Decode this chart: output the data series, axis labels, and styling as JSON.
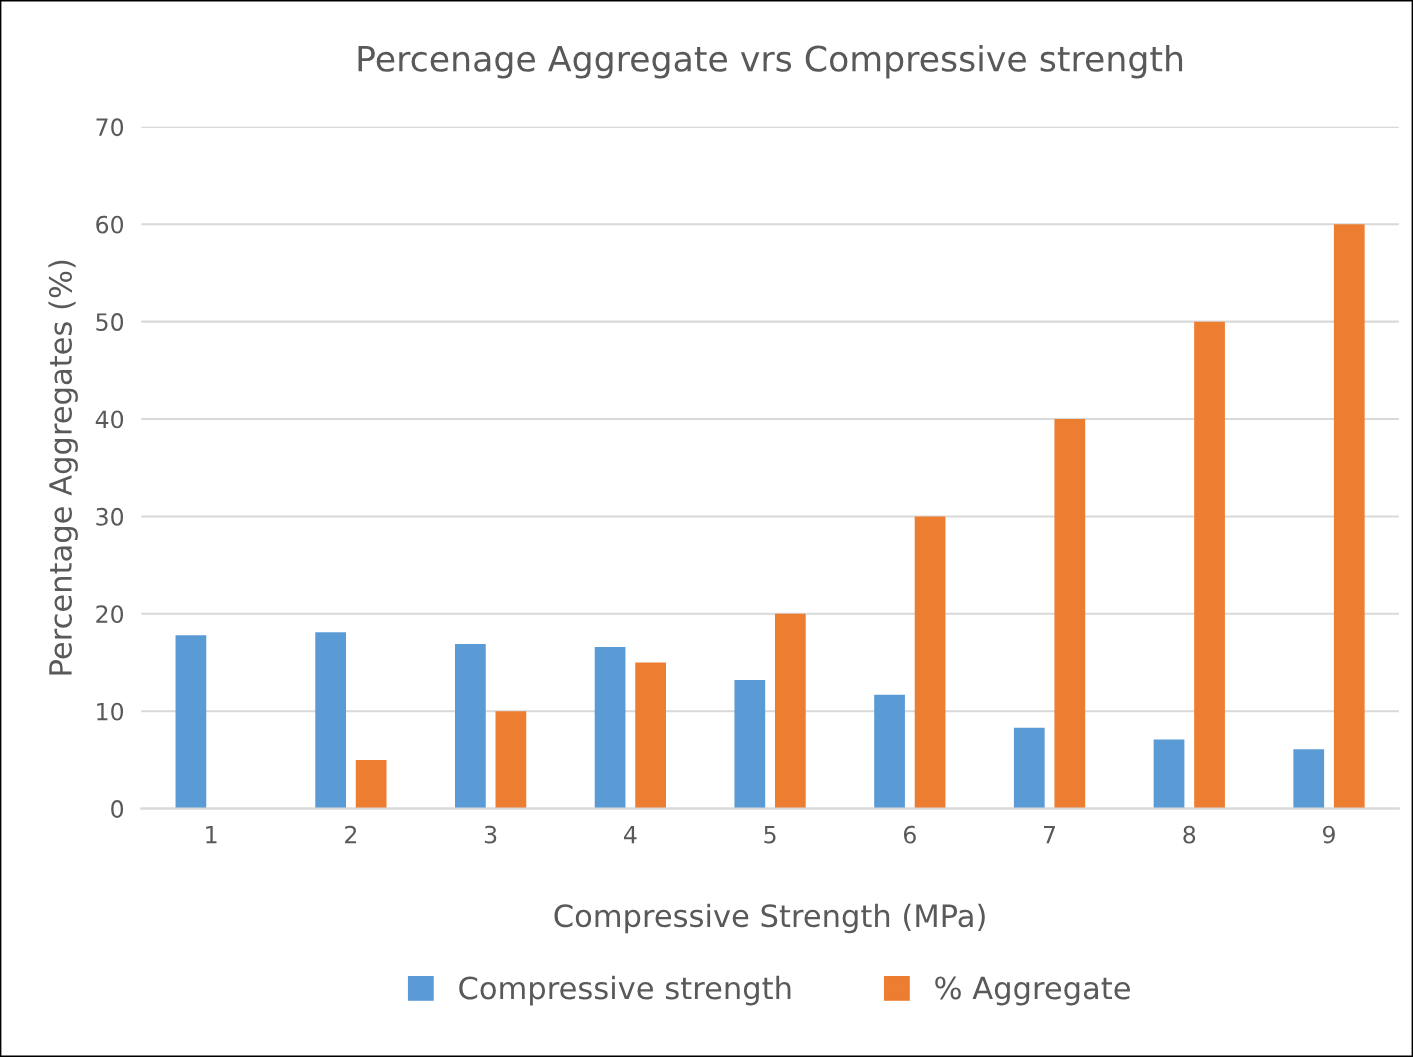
{
  "chart_data": {
    "type": "bar",
    "title": "Percenage Aggregate vrs Compressive strength",
    "xlabel": "Compressive Strength (MPa)",
    "ylabel": "Percentage Aggregates (%)",
    "categories": [
      "1",
      "2",
      "3",
      "4",
      "5",
      "6",
      "7",
      "8",
      "9"
    ],
    "series": [
      {
        "name": "Compressive strength",
        "color": "#5b9bd5",
        "values": [
          17.8,
          18.1,
          16.9,
          16.6,
          13.2,
          11.7,
          8.3,
          7.1,
          6.1
        ]
      },
      {
        "name": "% Aggregate",
        "color": "#ed7d31",
        "values": [
          0,
          5,
          10,
          15,
          20,
          30,
          40,
          50,
          60
        ]
      }
    ],
    "ylim": [
      0,
      70
    ],
    "yticks": [
      0,
      10,
      20,
      30,
      40,
      50,
      60,
      70
    ],
    "grid": "y",
    "legend": "bottom"
  }
}
